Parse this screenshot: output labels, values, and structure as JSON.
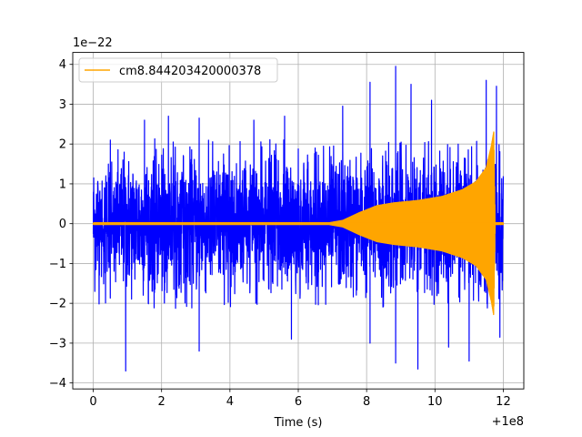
{
  "chart_data": {
    "type": "line",
    "title": "",
    "xlabel": "Time (s)",
    "ylabel": "",
    "x_offset_label": "+1e8",
    "y_scale_label": "1e−22",
    "xlim": [
      -0.6,
      12.6
    ],
    "ylim": [
      -4.15,
      4.3
    ],
    "x_ticks": [
      0,
      2,
      4,
      6,
      8,
      10,
      12
    ],
    "x_tick_labels": [
      "0",
      "2",
      "4",
      "6",
      "8",
      "10",
      "12"
    ],
    "y_ticks": [
      -4,
      -3,
      -2,
      -1,
      0,
      1,
      2,
      3,
      4
    ],
    "y_tick_labels": [
      "−4",
      "−3",
      "−2",
      "−1",
      "0",
      "1",
      "2",
      "3",
      "4"
    ],
    "grid": true,
    "legend_position": "top-left",
    "series": [
      {
        "name": "",
        "color": "#0000ff",
        "kind": "noise",
        "x_range": [
          0,
          12
        ],
        "typical_amplitude": 1.9,
        "spikes": [
          {
            "x": 0.5,
            "y": 2.1
          },
          {
            "x": 0.95,
            "y": -3.7
          },
          {
            "x": 1.5,
            "y": 2.6
          },
          {
            "x": 2.2,
            "y": 2.7
          },
          {
            "x": 3.1,
            "y": 2.65
          },
          {
            "x": 3.1,
            "y": -3.2
          },
          {
            "x": 4.7,
            "y": 2.6
          },
          {
            "x": 5.6,
            "y": 2.7
          },
          {
            "x": 5.8,
            "y": -2.9
          },
          {
            "x": 7.3,
            "y": 2.95
          },
          {
            "x": 8.1,
            "y": 3.55
          },
          {
            "x": 8.1,
            "y": -3.0
          },
          {
            "x": 8.85,
            "y": 3.95
          },
          {
            "x": 8.85,
            "y": -3.5
          },
          {
            "x": 9.3,
            "y": 3.5
          },
          {
            "x": 9.5,
            "y": -3.65
          },
          {
            "x": 9.9,
            "y": 3.1
          },
          {
            "x": 10.4,
            "y": -3.1
          },
          {
            "x": 11.0,
            "y": -3.45
          },
          {
            "x": 11.5,
            "y": 3.6
          },
          {
            "x": 11.8,
            "y": 3.45
          },
          {
            "x": 11.9,
            "y": -2.85
          }
        ]
      },
      {
        "name": "cm8.844203420000378",
        "color": "#ffa500",
        "kind": "chirp",
        "x_range": [
          0,
          12
        ],
        "envelope": [
          {
            "x": 0,
            "a": 0.02
          },
          {
            "x": 6.9,
            "a": 0.02
          },
          {
            "x": 7.3,
            "a": 0.08
          },
          {
            "x": 7.8,
            "a": 0.28
          },
          {
            "x": 8.3,
            "a": 0.45
          },
          {
            "x": 8.8,
            "a": 0.52
          },
          {
            "x": 9.5,
            "a": 0.58
          },
          {
            "x": 10.2,
            "a": 0.68
          },
          {
            "x": 10.8,
            "a": 0.85
          },
          {
            "x": 11.2,
            "a": 1.05
          },
          {
            "x": 11.5,
            "a": 1.4
          },
          {
            "x": 11.65,
            "a": 1.95
          },
          {
            "x": 11.72,
            "a": 2.3
          },
          {
            "x": 11.76,
            "a": 0.02
          },
          {
            "x": 12.0,
            "a": 0.02
          }
        ]
      }
    ]
  }
}
